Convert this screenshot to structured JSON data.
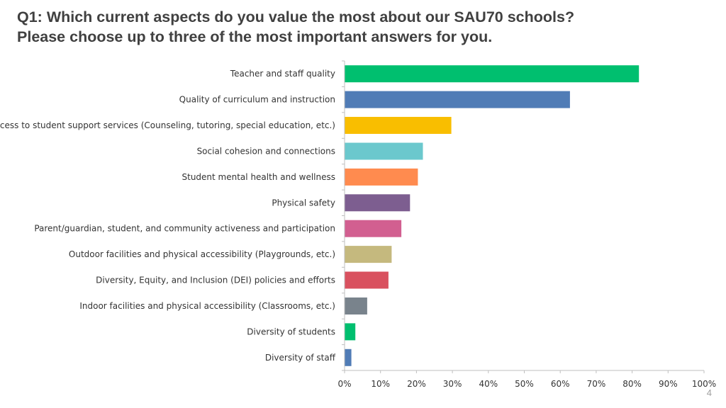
{
  "slide": {
    "title_line1": "Q1: Which current aspects do you value the most about our SAU70 schools?",
    "title_line2": "Please choose up to three of the most important answers for you.",
    "page_number": "4"
  },
  "chart_data": {
    "type": "bar",
    "orientation": "horizontal",
    "title": "Q1: Which current aspects do you value the most about our SAU70 schools? Please choose up to three of the most important answers for you.",
    "xlabel": "",
    "ylabel": "",
    "xlim": [
      0,
      100
    ],
    "x_ticks": [
      0,
      10,
      20,
      30,
      40,
      50,
      60,
      70,
      80,
      90,
      100
    ],
    "x_tick_format": "{v}%",
    "grid": false,
    "categories": [
      "Teacher and staff quality",
      "Quality of curriculum and instruction",
      "Access to student support services (Counseling, tutoring, special education, etc.)",
      "Social cohesion and connections",
      "Student mental health and wellness",
      "Physical safety",
      "Parent/guardian, student, and community activeness and participation",
      "Outdoor facilities and physical accessibility (Playgrounds, etc.)",
      "Diversity, Equity, and Inclusion (DEI) policies and efforts",
      "Indoor facilities and physical accessibility (Classrooms, etc.)",
      "Diversity of students",
      "Diversity of staff"
    ],
    "values": [
      81.9,
      62.7,
      29.7,
      21.8,
      20.4,
      18.2,
      15.8,
      13.1,
      12.2,
      6.3,
      3.0,
      1.9
    ],
    "colors": [
      "#00BF6F",
      "#507CB6",
      "#F9BE00",
      "#6BC8CD",
      "#FF8B4F",
      "#7D5E90",
      "#D25F90",
      "#C5B97E",
      "#D9515F",
      "#79838C",
      "#00BF6F",
      "#507CB6"
    ]
  }
}
